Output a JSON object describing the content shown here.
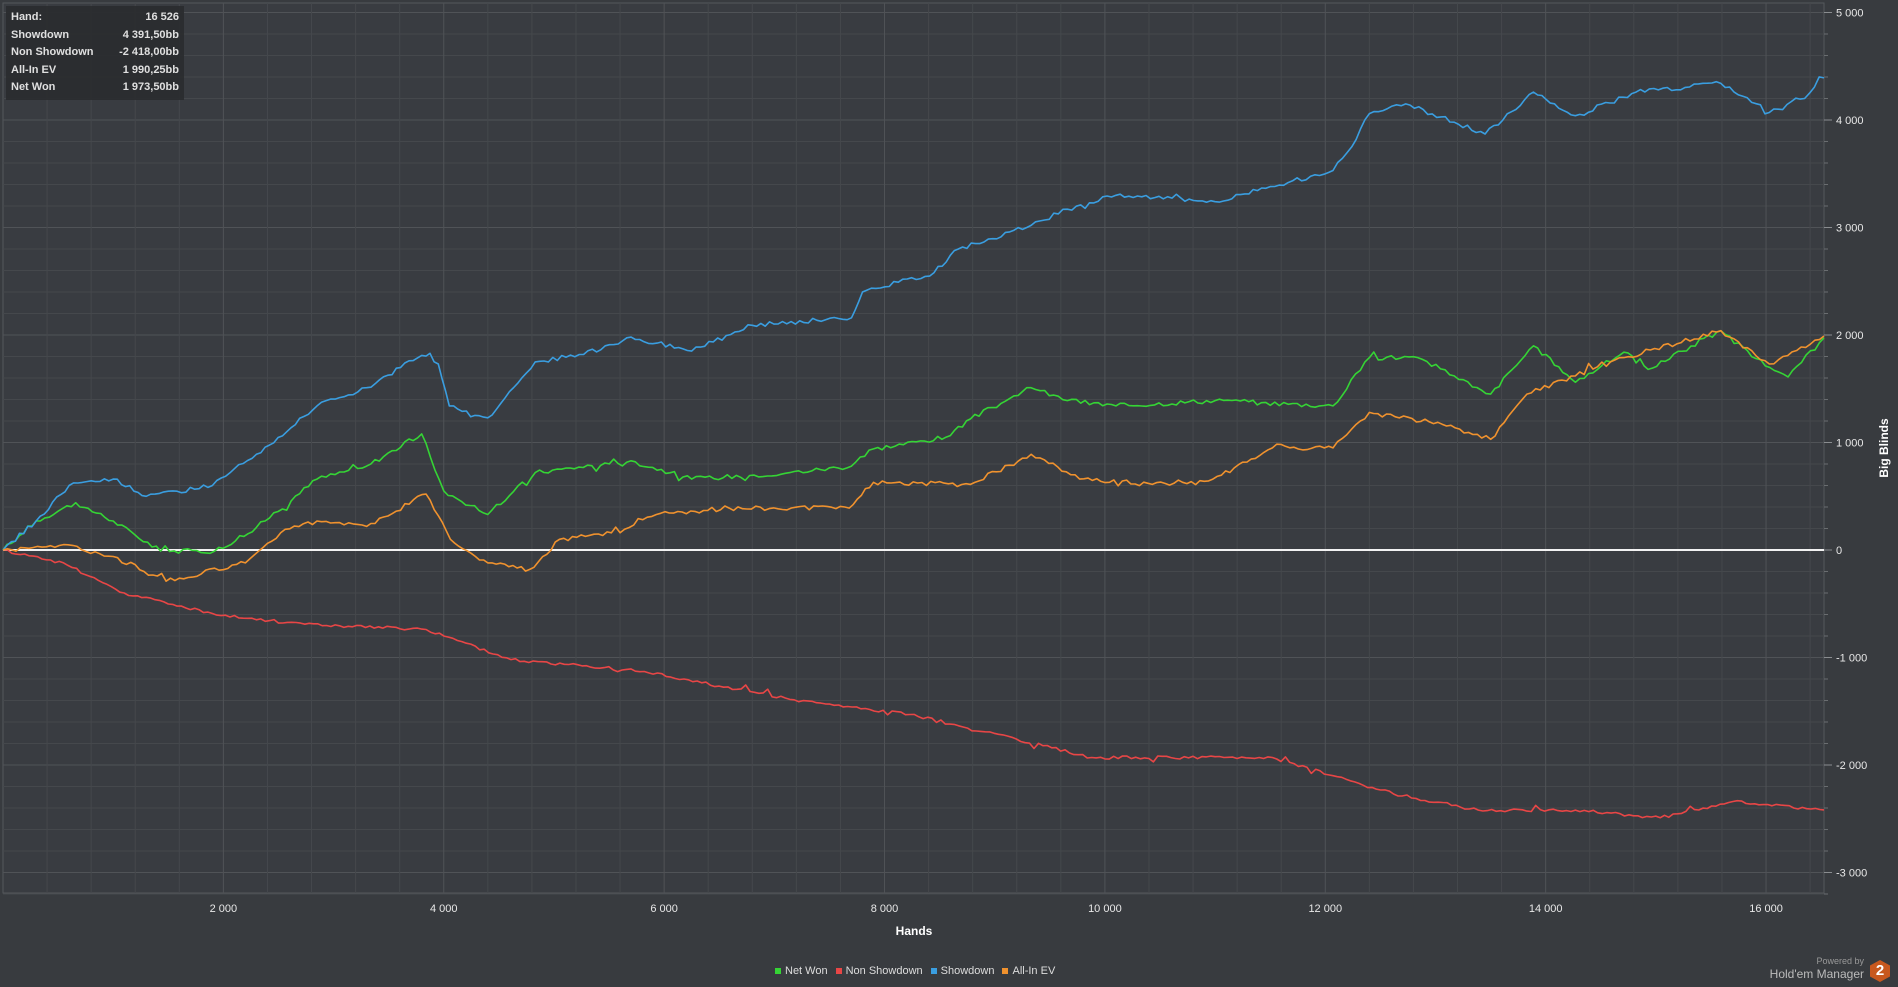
{
  "tooltip": {
    "rows": [
      {
        "label": "Hand:",
        "value": "16 526"
      },
      {
        "label": "Showdown",
        "value": "4 391,50bb"
      },
      {
        "label": "Non Showdown",
        "value": "-2 418,00bb"
      },
      {
        "label": "All-In EV",
        "value": "1 990,25bb"
      },
      {
        "label": "Net Won",
        "value": "1 973,50bb"
      }
    ]
  },
  "branding": {
    "powered_by": "Powered by",
    "product": "Hold'em Manager",
    "badge": "2"
  },
  "chart_data": {
    "type": "line",
    "xlabel": "Hands",
    "ylabel": "Big Blinds",
    "xlim": [
      0,
      16526
    ],
    "ylim": [
      -3250,
      5050
    ],
    "x_ticks": [
      2000,
      4000,
      6000,
      8000,
      10000,
      12000,
      14000,
      16000
    ],
    "x_tick_labels": [
      "2 000",
      "4 000",
      "6 000",
      "8 000",
      "10 000",
      "12 000",
      "14 000",
      "16 000"
    ],
    "y_ticks": [
      5000,
      4000,
      3000,
      2000,
      1000,
      0,
      -1000,
      -2000,
      -3000
    ],
    "y_tick_labels": [
      "5 000",
      "4 000",
      "3 000",
      "2 000",
      "1 000",
      "0",
      "-1 000",
      "-2 000",
      "-3 000"
    ],
    "grid": true,
    "legend_position": "bottom-center",
    "series": [
      {
        "name": "Net Won",
        "color": "#35d435",
        "points": [
          [
            0,
            0
          ],
          [
            300,
            270
          ],
          [
            660,
            440
          ],
          [
            1000,
            270
          ],
          [
            1430,
            -10
          ],
          [
            1920,
            -10
          ],
          [
            2300,
            210
          ],
          [
            2850,
            660
          ],
          [
            3300,
            780
          ],
          [
            3800,
            1080
          ],
          [
            4000,
            550
          ],
          [
            4400,
            330
          ],
          [
            4830,
            720
          ],
          [
            5700,
            830
          ],
          [
            6250,
            660
          ],
          [
            7140,
            720
          ],
          [
            7700,
            780
          ],
          [
            7900,
            940
          ],
          [
            8560,
            1050
          ],
          [
            8780,
            1220
          ],
          [
            9330,
            1510
          ],
          [
            9660,
            1390
          ],
          [
            10100,
            1340
          ],
          [
            11000,
            1390
          ],
          [
            11420,
            1370
          ],
          [
            12070,
            1340
          ],
          [
            12400,
            1790
          ],
          [
            12840,
            1790
          ],
          [
            13170,
            1620
          ],
          [
            13500,
            1450
          ],
          [
            13890,
            1900
          ],
          [
            14270,
            1560
          ],
          [
            14710,
            1840
          ],
          [
            14930,
            1680
          ],
          [
            15590,
            2040
          ],
          [
            15910,
            1780
          ],
          [
            16200,
            1610
          ],
          [
            16526,
            1973.5
          ]
        ]
      },
      {
        "name": "Non Showdown",
        "color": "#e84646",
        "points": [
          [
            0,
            0
          ],
          [
            550,
            -120
          ],
          [
            1100,
            -400
          ],
          [
            1980,
            -610
          ],
          [
            2740,
            -690
          ],
          [
            3840,
            -740
          ],
          [
            4610,
            -1020
          ],
          [
            5820,
            -1130
          ],
          [
            7140,
            -1390
          ],
          [
            8230,
            -1530
          ],
          [
            9880,
            -1930
          ],
          [
            11520,
            -1930
          ],
          [
            12620,
            -2270
          ],
          [
            13390,
            -2420
          ],
          [
            14270,
            -2420
          ],
          [
            15040,
            -2490
          ],
          [
            15700,
            -2340
          ],
          [
            16526,
            -2418
          ]
        ]
      },
      {
        "name": "Showdown",
        "color": "#3a9ee0",
        "points": [
          [
            0,
            0
          ],
          [
            300,
            270
          ],
          [
            600,
            600
          ],
          [
            1000,
            660
          ],
          [
            1300,
            500
          ],
          [
            1900,
            600
          ],
          [
            2300,
            890
          ],
          [
            2850,
            1340
          ],
          [
            3300,
            1510
          ],
          [
            3800,
            1810
          ],
          [
            3950,
            1730
          ],
          [
            4050,
            1340
          ],
          [
            4400,
            1230
          ],
          [
            4830,
            1750
          ],
          [
            5270,
            1820
          ],
          [
            5700,
            1980
          ],
          [
            6250,
            1850
          ],
          [
            6800,
            2090
          ],
          [
            7700,
            2160
          ],
          [
            7800,
            2400
          ],
          [
            8450,
            2580
          ],
          [
            8670,
            2800
          ],
          [
            9330,
            3020
          ],
          [
            9660,
            3170
          ],
          [
            10100,
            3300
          ],
          [
            11000,
            3240
          ],
          [
            11500,
            3380
          ],
          [
            12070,
            3530
          ],
          [
            12240,
            3750
          ],
          [
            12400,
            4060
          ],
          [
            12730,
            4150
          ],
          [
            13170,
            3980
          ],
          [
            13450,
            3870
          ],
          [
            13890,
            4260
          ],
          [
            14270,
            4040
          ],
          [
            14820,
            4260
          ],
          [
            15590,
            4340
          ],
          [
            16030,
            4070
          ],
          [
            16350,
            4200
          ],
          [
            16526,
            4391.5
          ]
        ]
      },
      {
        "name": "All-In EV",
        "color": "#f0922e",
        "points": [
          [
            0,
            0
          ],
          [
            550,
            50
          ],
          [
            1000,
            -60
          ],
          [
            1480,
            -290
          ],
          [
            2200,
            -120
          ],
          [
            2520,
            160
          ],
          [
            2850,
            270
          ],
          [
            3300,
            220
          ],
          [
            3840,
            520
          ],
          [
            4060,
            100
          ],
          [
            4400,
            -120
          ],
          [
            4780,
            -180
          ],
          [
            5050,
            100
          ],
          [
            5600,
            160
          ],
          [
            5930,
            330
          ],
          [
            6590,
            390
          ],
          [
            7680,
            390
          ],
          [
            7900,
            630
          ],
          [
            8780,
            610
          ],
          [
            9330,
            890
          ],
          [
            9770,
            660
          ],
          [
            10430,
            610
          ],
          [
            10980,
            660
          ],
          [
            11520,
            950
          ],
          [
            12070,
            950
          ],
          [
            12400,
            1280
          ],
          [
            13060,
            1170
          ],
          [
            13500,
            1030
          ],
          [
            13830,
            1450
          ],
          [
            14270,
            1620
          ],
          [
            14710,
            1790
          ],
          [
            15590,
            2040
          ],
          [
            16030,
            1730
          ],
          [
            16526,
            1990.25
          ]
        ]
      }
    ]
  }
}
